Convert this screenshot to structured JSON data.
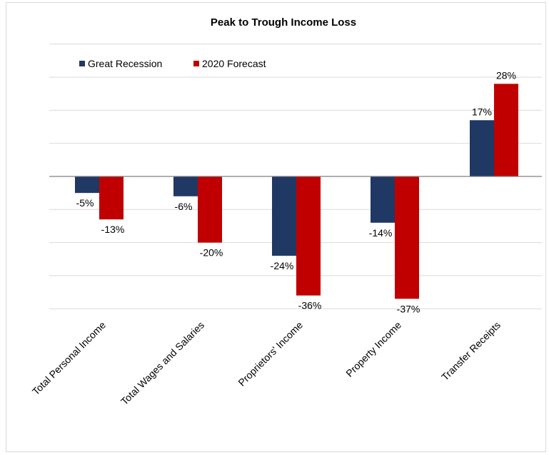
{
  "chart_data": {
    "type": "bar",
    "title": "Peak to Trough Income Loss",
    "categories": [
      "Total Personal Income",
      "Total Wages and Salaries",
      "Proprietors' Income",
      "Property Income",
      "Transfer Receipts"
    ],
    "series": [
      {
        "name": "Great Recession",
        "values": [
          -5,
          -6,
          -24,
          -14,
          17
        ],
        "labels": [
          "-5%",
          "-6%",
          "-24%",
          "-14%",
          "17%"
        ],
        "color": "#1f3864"
      },
      {
        "name": "2020 Forecast",
        "values": [
          -13,
          -20,
          -36,
          -37,
          28
        ],
        "labels": [
          "-13%",
          "-20%",
          "-36%",
          "-37%",
          "28%"
        ],
        "color": "#c00000"
      }
    ],
    "ylim": [
      -40,
      40
    ],
    "yticks": [
      -40,
      -30,
      -20,
      -10,
      0,
      10,
      20,
      30,
      40
    ],
    "grid": true,
    "legend_position": "top-left",
    "xlabel": "",
    "ylabel": ""
  }
}
